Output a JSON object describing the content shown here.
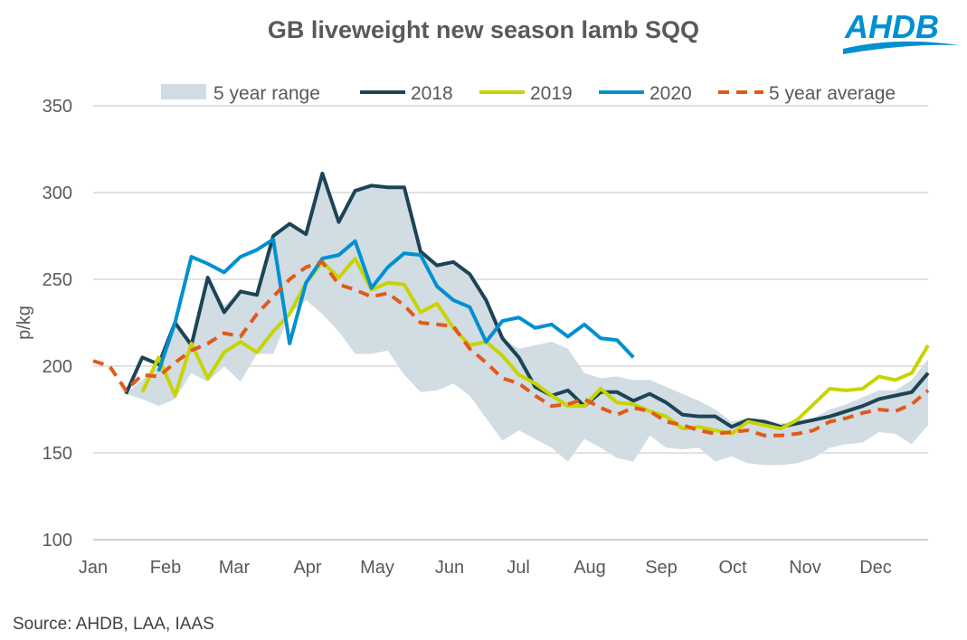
{
  "chart_data": {
    "type": "line",
    "title": "GB liveweight new season lamb SQQ",
    "ylabel": "p/kg",
    "xlabel": "",
    "ylim": [
      100,
      350
    ],
    "yticks": [
      100,
      150,
      200,
      250,
      300,
      350
    ],
    "months": [
      "Jan",
      "Feb",
      "Mar",
      "Apr",
      "May",
      "Jun",
      "Jul",
      "Aug",
      "Sep",
      "Oct",
      "Nov",
      "Dec"
    ],
    "x_unit": "week of year (1-52)",
    "grid": "horizontal",
    "legend": "top",
    "band": {
      "name": "5 year range",
      "color": "#d1dce3",
      "start_week": 3,
      "upper": [
        184,
        192,
        200,
        225,
        215,
        251,
        235,
        243,
        241,
        275,
        282,
        276,
        311,
        283,
        301,
        304,
        303,
        303,
        266,
        258,
        260,
        253,
        238,
        216,
        210,
        212,
        214,
        210,
        196,
        193,
        194,
        192,
        192,
        188,
        184,
        180,
        175,
        168,
        170,
        169,
        167,
        168,
        170,
        175,
        178,
        182,
        186,
        186,
        192,
        204
      ],
      "lower": [
        184,
        181,
        177,
        181,
        196,
        191,
        200,
        191,
        207,
        207,
        230,
        238,
        230,
        220,
        207,
        207,
        209,
        195,
        185,
        186,
        190,
        183,
        170,
        157,
        163,
        158,
        153,
        145,
        158,
        153,
        147,
        145,
        160,
        153,
        152,
        153,
        145,
        148,
        144,
        143,
        143,
        144,
        147,
        153,
        155,
        156,
        162,
        161,
        155,
        166
      ]
    },
    "series": [
      {
        "name": "2018",
        "color": "#1d4455",
        "dashed": false,
        "start_week": 3,
        "values": [
          184,
          205,
          201,
          225,
          212,
          251,
          231,
          243,
          241,
          275,
          282,
          276,
          311,
          283,
          301,
          304,
          303,
          303,
          266,
          258,
          260,
          253,
          238,
          216,
          205,
          188,
          183,
          186,
          177,
          185,
          185,
          180,
          184,
          179,
          172,
          171,
          171,
          165,
          169,
          168,
          165,
          167,
          169,
          171,
          174,
          177,
          181,
          183,
          185,
          196
        ]
      },
      {
        "name": "2019",
        "color": "#c8d400",
        "dashed": false,
        "start_week": 4,
        "values": [
          185,
          205,
          183,
          213,
          193,
          208,
          214,
          208,
          220,
          230,
          248,
          260,
          251,
          262,
          244,
          248,
          247,
          231,
          236,
          222,
          212,
          214,
          206,
          195,
          190,
          183,
          177,
          177,
          187,
          179,
          178,
          174,
          171,
          164,
          165,
          163,
          161,
          168,
          166,
          164,
          169,
          178,
          187,
          186,
          187,
          194,
          192,
          196,
          212
        ]
      },
      {
        "name": "2020",
        "color": "#0090d0",
        "dashed": false,
        "start_week": 5,
        "values": [
          197,
          225,
          263,
          259,
          254,
          263,
          267,
          273,
          213,
          248,
          262,
          264,
          272,
          245,
          257,
          265,
          264,
          246,
          238,
          234,
          214,
          226,
          228,
          222,
          224,
          217,
          224,
          216,
          215,
          205
        ]
      },
      {
        "name": "5 year average",
        "color": "#e05a1a",
        "dashed": true,
        "start_week": 1,
        "values": [
          203,
          200,
          186,
          195,
          194,
          202,
          209,
          213,
          219,
          217,
          230,
          240,
          250,
          257,
          260,
          247,
          244,
          240,
          242,
          235,
          225,
          224,
          223,
          210,
          202,
          193,
          190,
          183,
          177,
          178,
          181,
          176,
          172,
          176,
          174,
          168,
          166,
          163,
          161,
          162,
          163,
          160,
          160,
          161,
          163,
          168,
          170,
          173,
          175,
          174,
          178,
          186
        ]
      }
    ]
  },
  "source": "Source: AHDB, LAA, IAAS",
  "logo_text": "AHDB"
}
